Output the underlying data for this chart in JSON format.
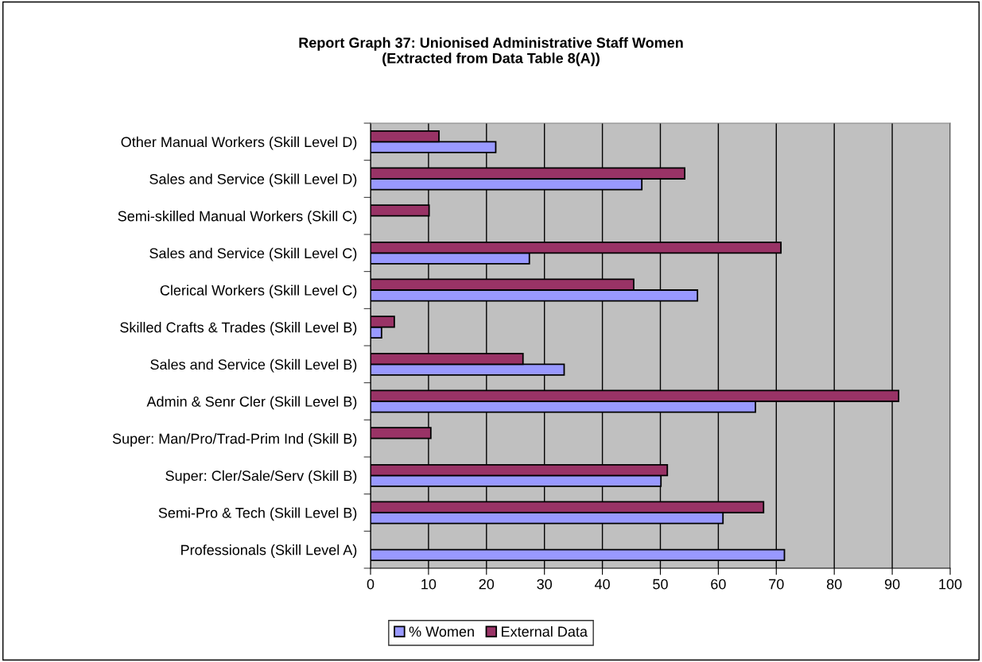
{
  "chart_data": {
    "type": "bar",
    "orientation": "horizontal",
    "title": "Report Graph 37: Unionised Administrative Staff Women\n(Extracted from Data Table 8(A))",
    "categories": [
      "Other Manual Workers (Skill Level D)",
      "Sales and Service (Skill Level D)",
      "Semi-skilled Manual Workers (Skill C)",
      "Sales and Service (Skill Level C)",
      "Clerical Workers (Skill Level C)",
      "Skilled Crafts & Trades (Skill Level B)",
      "Sales and Service (Skill Level B)",
      "Admin & Senr Cler (Skill Level B)",
      "Super: Man/Pro/Trad-Prim Ind (Skill B)",
      "Super: Cler/Sale/Serv (Skill B)",
      "Semi-Pro & Tech (Skill Level B)",
      "Professionals (Skill Level A)"
    ],
    "series": [
      {
        "name": "% Women",
        "color": "#9999ff",
        "values": [
          21.6,
          46.8,
          null,
          27.4,
          56.4,
          1.9,
          33.4,
          66.4,
          null,
          50.1,
          60.8,
          71.4
        ]
      },
      {
        "name": "External Data",
        "color": "#993366",
        "values": [
          11.8,
          54.2,
          10.1,
          70.8,
          45.4,
          4.1,
          26.3,
          91.1,
          10.4,
          51.2,
          67.8,
          null
        ]
      }
    ],
    "xlim": [
      0,
      100
    ],
    "xticks": [
      0,
      10,
      20,
      30,
      40,
      50,
      60,
      70,
      80,
      90,
      100
    ],
    "grid": "x",
    "legend": "bottom"
  }
}
